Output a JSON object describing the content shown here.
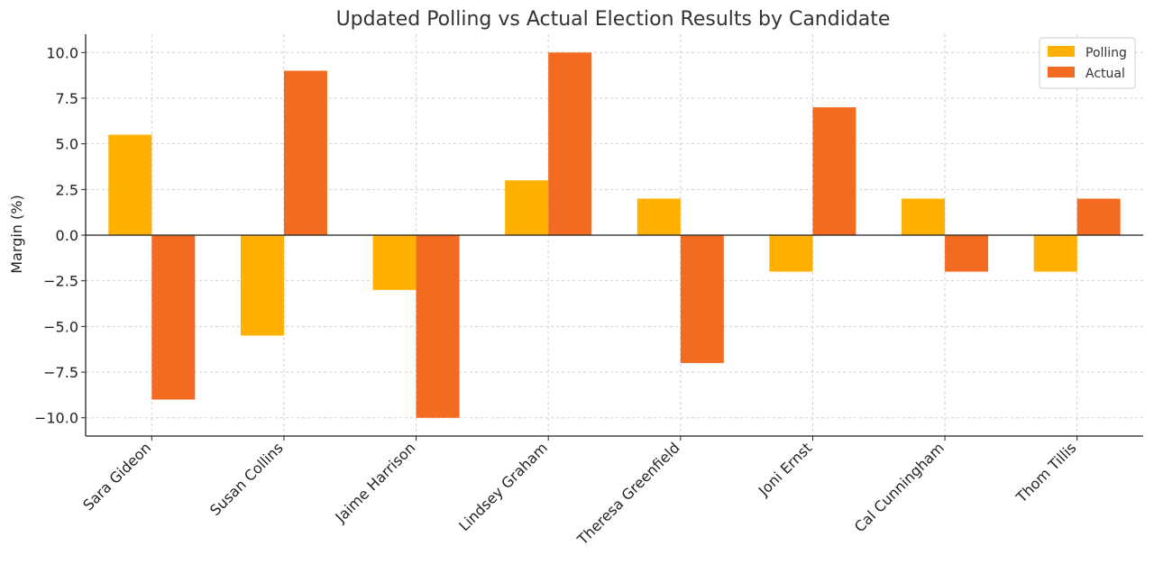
{
  "chart_data": {
    "type": "bar",
    "title": "Updated Polling vs Actual Election Results by Candidate",
    "xlabel": "",
    "ylabel": "Margin (%)",
    "ylim": [
      -11,
      11
    ],
    "yticks": [
      10.0,
      7.5,
      5.0,
      2.5,
      0.0,
      -2.5,
      -5.0,
      -7.5,
      -10.0
    ],
    "ytick_labels": [
      "10.0",
      "7.5",
      "5.0",
      "2.5",
      "0.0",
      "−2.5",
      "−5.0",
      "−7.5",
      "−10.0"
    ],
    "categories": [
      "Sara Gideon",
      "Susan Collins",
      "Jaime Harrison",
      "Lindsey Graham",
      "Theresa Greenfield",
      "Joni Ernst",
      "Cal Cunningham",
      "Thom Tillis"
    ],
    "series": [
      {
        "name": "Polling",
        "color": "#FFB000",
        "values": [
          5.5,
          -5.5,
          -3.0,
          3.0,
          2.0,
          -2.0,
          2.0,
          -2.0
        ]
      },
      {
        "name": "Actual",
        "color": "#F26B21",
        "values": [
          -9.0,
          9.0,
          -10.0,
          10.0,
          -7.0,
          7.0,
          -2.0,
          2.0
        ]
      }
    ],
    "grid": true,
    "legend_position": "top-right"
  }
}
